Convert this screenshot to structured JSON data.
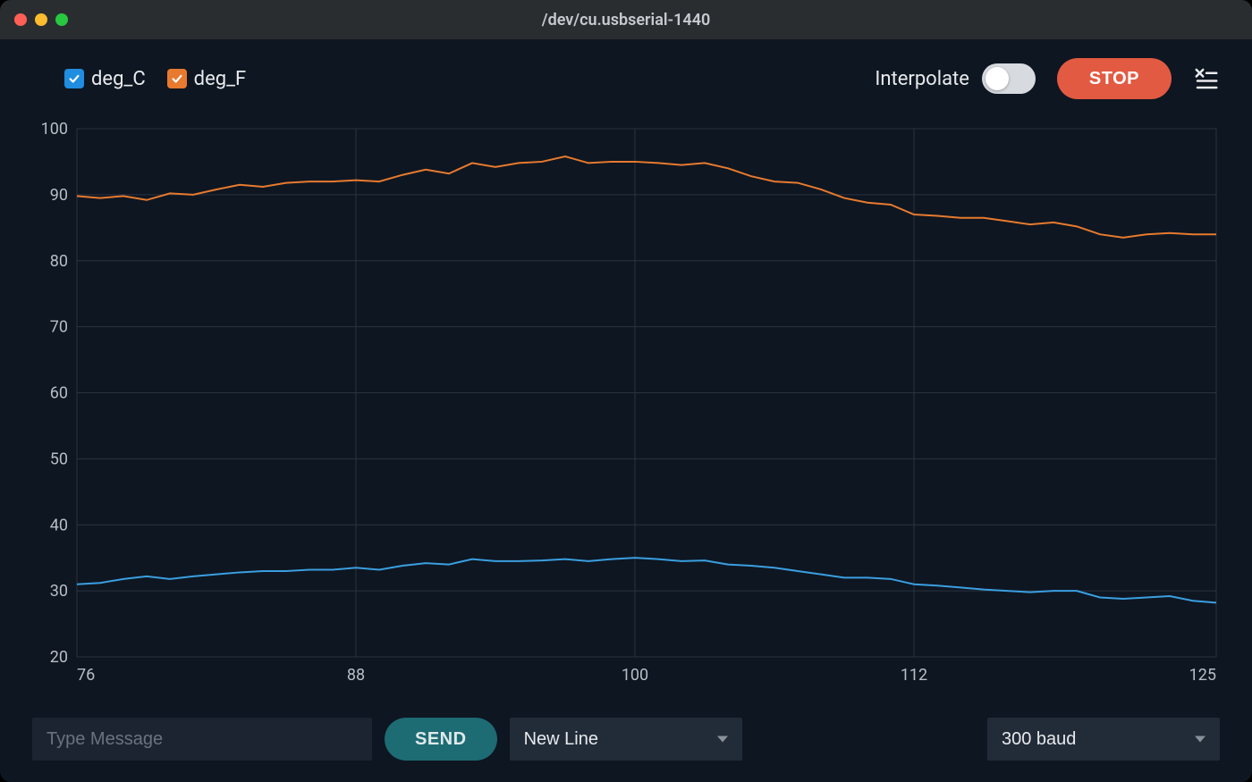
{
  "window": {
    "title": "/dev/cu.usbserial-1440"
  },
  "toolbar": {
    "legend": [
      {
        "label": "deg_C",
        "color": "#1f8de0",
        "checked": true
      },
      {
        "label": "deg_F",
        "color": "#e77a2f",
        "checked": true
      }
    ],
    "interpolate_label": "Interpolate",
    "interpolate_on": false,
    "stop_label": "STOP"
  },
  "chart": {
    "type": "line",
    "x_range": [
      76,
      125
    ],
    "y_range": [
      20,
      100
    ],
    "x_ticks": [
      76,
      88,
      100,
      112,
      125
    ],
    "y_ticks": [
      20,
      30,
      40,
      50,
      60,
      70,
      80,
      90,
      100
    ],
    "grid_color": "#2a3340",
    "background_color": "#0e1621",
    "axis_text_color": "#b8bec6",
    "axis_fontsize": 18,
    "line_width": 2,
    "series": [
      {
        "name": "deg_F",
        "color": "#e77a2f",
        "points": [
          [
            76,
            89.8
          ],
          [
            77,
            89.5
          ],
          [
            78,
            89.8
          ],
          [
            79,
            89.2
          ],
          [
            80,
            90.2
          ],
          [
            81,
            90.0
          ],
          [
            82,
            90.8
          ],
          [
            83,
            91.5
          ],
          [
            84,
            91.2
          ],
          [
            85,
            91.8
          ],
          [
            86,
            92.0
          ],
          [
            87,
            92.0
          ],
          [
            88,
            92.2
          ],
          [
            89,
            92.0
          ],
          [
            90,
            93.0
          ],
          [
            91,
            93.8
          ],
          [
            92,
            93.2
          ],
          [
            93,
            94.8
          ],
          [
            94,
            94.2
          ],
          [
            95,
            94.8
          ],
          [
            96,
            95.0
          ],
          [
            97,
            95.8
          ],
          [
            98,
            94.8
          ],
          [
            99,
            95.0
          ],
          [
            100,
            95.0
          ],
          [
            101,
            94.8
          ],
          [
            102,
            94.5
          ],
          [
            103,
            94.8
          ],
          [
            104,
            94.0
          ],
          [
            105,
            92.8
          ],
          [
            106,
            92.0
          ],
          [
            107,
            91.8
          ],
          [
            108,
            90.8
          ],
          [
            109,
            89.5
          ],
          [
            110,
            88.8
          ],
          [
            111,
            88.5
          ],
          [
            112,
            87.0
          ],
          [
            113,
            86.8
          ],
          [
            114,
            86.5
          ],
          [
            115,
            86.5
          ],
          [
            116,
            86.0
          ],
          [
            117,
            85.5
          ],
          [
            118,
            85.8
          ],
          [
            119,
            85.2
          ],
          [
            120,
            84.0
          ],
          [
            121,
            83.5
          ],
          [
            122,
            84.0
          ],
          [
            123,
            84.2
          ],
          [
            124,
            84.0
          ],
          [
            125,
            84.0
          ]
        ]
      },
      {
        "name": "deg_C",
        "color": "#3a9fe0",
        "points": [
          [
            76,
            31.0
          ],
          [
            77,
            31.2
          ],
          [
            78,
            31.8
          ],
          [
            79,
            32.2
          ],
          [
            80,
            31.8
          ],
          [
            81,
            32.2
          ],
          [
            82,
            32.5
          ],
          [
            83,
            32.8
          ],
          [
            84,
            33.0
          ],
          [
            85,
            33.0
          ],
          [
            86,
            33.2
          ],
          [
            87,
            33.2
          ],
          [
            88,
            33.5
          ],
          [
            89,
            33.2
          ],
          [
            90,
            33.8
          ],
          [
            91,
            34.2
          ],
          [
            92,
            34.0
          ],
          [
            93,
            34.8
          ],
          [
            94,
            34.5
          ],
          [
            95,
            34.5
          ],
          [
            96,
            34.6
          ],
          [
            97,
            34.8
          ],
          [
            98,
            34.5
          ],
          [
            99,
            34.8
          ],
          [
            100,
            35.0
          ],
          [
            101,
            34.8
          ],
          [
            102,
            34.5
          ],
          [
            103,
            34.6
          ],
          [
            104,
            34.0
          ],
          [
            105,
            33.8
          ],
          [
            106,
            33.5
          ],
          [
            107,
            33.0
          ],
          [
            108,
            32.5
          ],
          [
            109,
            32.0
          ],
          [
            110,
            32.0
          ],
          [
            111,
            31.8
          ],
          [
            112,
            31.0
          ],
          [
            113,
            30.8
          ],
          [
            114,
            30.5
          ],
          [
            115,
            30.2
          ],
          [
            116,
            30.0
          ],
          [
            117,
            29.8
          ],
          [
            118,
            30.0
          ],
          [
            119,
            30.0
          ],
          [
            120,
            29.0
          ],
          [
            121,
            28.8
          ],
          [
            122,
            29.0
          ],
          [
            123,
            29.2
          ],
          [
            124,
            28.5
          ],
          [
            125,
            28.2
          ]
        ]
      }
    ]
  },
  "bottombar": {
    "message_placeholder": "Type Message",
    "message_value": "",
    "send_label": "SEND",
    "line_ending_selected": "New Line",
    "baud_selected": "300 baud"
  }
}
